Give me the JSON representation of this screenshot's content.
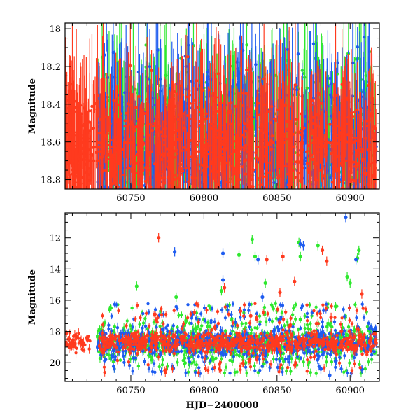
{
  "chart_data": [
    {
      "type": "scatter",
      "panel": "top",
      "title": "",
      "xlabel": "",
      "ylabel": "Magnitude",
      "xlim": [
        60705,
        60920
      ],
      "ylim": [
        18.85,
        17.97
      ],
      "y_inverted": true,
      "x_ticks": [
        60750,
        60800,
        60850,
        60900
      ],
      "x_tick_labels": [
        "60750",
        "60800",
        "60850",
        "60900"
      ],
      "y_ticks": [
        18,
        18.2,
        18.4,
        18.6,
        18.8
      ],
      "y_tick_labels": [
        "18",
        "18.2",
        "18.4",
        "18.6",
        "18.8"
      ],
      "reference_line_y": 18.6,
      "grid": false,
      "legend": "none",
      "series": [
        {
          "color": "#2ee82e",
          "x_range": [
            60727,
            60918
          ],
          "center": 18.62,
          "spread": 0.22
        },
        {
          "color": "#1e5cf0",
          "x_range": [
            60727,
            60918
          ],
          "center": 18.6,
          "spread": 0.2
        },
        {
          "color": "#ff3a1e",
          "x_range": [
            60705,
            60918
          ],
          "center": 18.62,
          "spread": 0.15
        }
      ]
    },
    {
      "type": "scatter",
      "panel": "bottom",
      "title": "",
      "xlabel": "HJD−2400000",
      "ylabel": "Magnitude",
      "xlim": [
        60705,
        60920
      ],
      "ylim": [
        21.2,
        10.4
      ],
      "y_inverted": true,
      "x_ticks": [
        60750,
        60800,
        60850,
        60900
      ],
      "x_tick_labels": [
        "60750",
        "60800",
        "60850",
        "60900"
      ],
      "y_ticks": [
        12,
        14,
        16,
        18,
        20
      ],
      "y_tick_labels": [
        "12",
        "14",
        "16",
        "18",
        "20"
      ],
      "grid": false,
      "legend": "none",
      "series": [
        {
          "color": "#2ee82e",
          "outliers": [
            [
              60754,
              15.1
            ],
            [
              60781,
              15.8
            ],
            [
              60812,
              15.4
            ],
            [
              60824,
              13.1
            ],
            [
              60833,
              12.1
            ],
            [
              60835,
              13.2
            ],
            [
              60842,
              14.9
            ],
            [
              60865,
              12.3
            ],
            [
              60866,
              13.2
            ],
            [
              60878,
              12.5
            ],
            [
              60885,
              17.5
            ],
            [
              60890,
              16.4
            ],
            [
              60898,
              14.5
            ],
            [
              60900,
              14.9
            ],
            [
              60905,
              13.3
            ],
            [
              60906,
              12.8
            ]
          ]
        },
        {
          "color": "#1e5cf0",
          "outliers": [
            [
              60780,
              12.9
            ],
            [
              60813,
              13.0
            ],
            [
              60813,
              14.7
            ],
            [
              60837,
              13.4
            ],
            [
              60840,
              15.8
            ],
            [
              60866,
              12.4
            ],
            [
              60868,
              12.5
            ],
            [
              60880,
              20.4
            ],
            [
              60886,
              20.8
            ],
            [
              60890,
              19.9
            ],
            [
              60897,
              10.7
            ],
            [
              60904,
              13.4
            ]
          ]
        },
        {
          "color": "#ff3a1e",
          "outliers": [
            [
              60769,
              12.0
            ],
            [
              60814,
              15.2
            ],
            [
              60825,
              16.7
            ],
            [
              60832,
              17.0
            ],
            [
              60843,
              13.4
            ],
            [
              60852,
              15.5
            ],
            [
              60854,
              13.2
            ],
            [
              60862,
              14.8
            ],
            [
              60878,
              17.5
            ],
            [
              60881,
              12.8
            ],
            [
              60884,
              13.5
            ],
            [
              60887,
              17.1
            ],
            [
              60894,
              18.0
            ],
            [
              60908,
              15.6
            ]
          ]
        }
      ]
    }
  ]
}
